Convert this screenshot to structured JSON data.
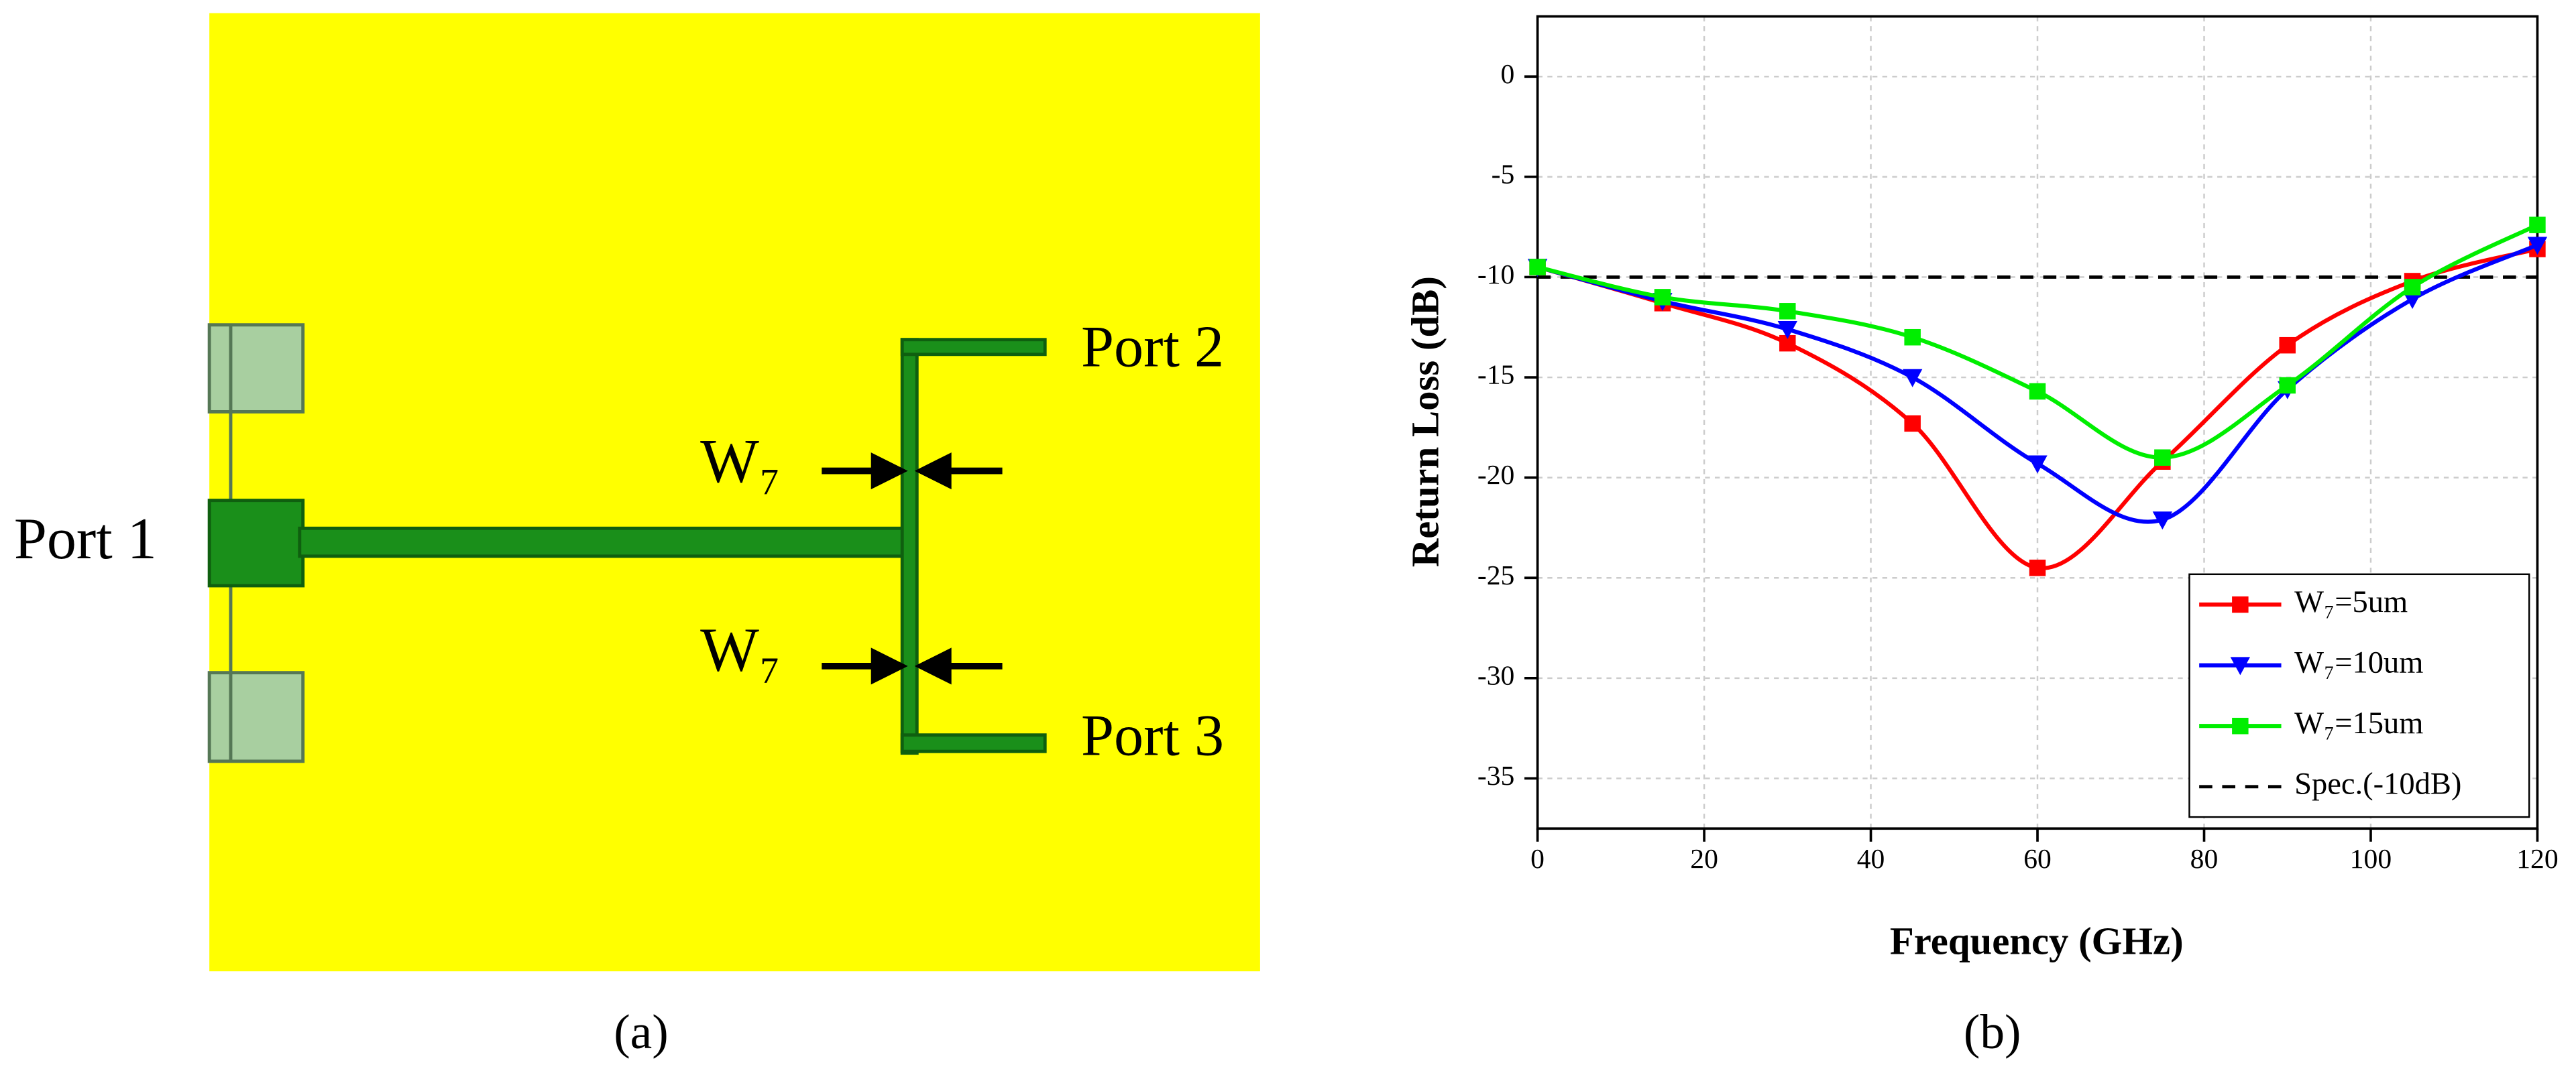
{
  "diagram": {
    "labels": {
      "port1": "Port 1",
      "port2": "Port 2",
      "port3": "Port 3",
      "w_top": "W₇",
      "w_bottom": "W₇"
    },
    "caption": "(a)"
  },
  "chart_data": {
    "type": "line",
    "caption": "(b)",
    "x_label": "Frequency (GHz)",
    "y_label": "Return Loss (dB)",
    "x": [
      0,
      15,
      30,
      45,
      60,
      75,
      90,
      105,
      120
    ],
    "series": [
      {
        "name": "W₇=5um",
        "color": "#ff0000",
        "marker": "square",
        "values": [
          -9.5,
          -11.3,
          -13.3,
          -17.3,
          -24.5,
          -19.2,
          -13.4,
          -10.2,
          -8.6
        ]
      },
      {
        "name": "W₇=10um",
        "color": "#0000ff",
        "marker": "triangle-down",
        "values": [
          -9.5,
          -11.2,
          -12.6,
          -15.0,
          -19.3,
          -22.1,
          -15.6,
          -11.1,
          -8.4
        ]
      },
      {
        "name": "W₇=15um",
        "color": "#00ee00",
        "marker": "square",
        "values": [
          -9.5,
          -11.0,
          -11.7,
          -13.0,
          -15.7,
          -19.0,
          -15.4,
          -10.5,
          -7.4
        ]
      }
    ],
    "reference_line": {
      "name": "Spec.(-10dB)",
      "value": -10,
      "color": "#000000"
    },
    "xlim": [
      0,
      120
    ],
    "xticks": [
      0,
      20,
      40,
      60,
      80,
      100,
      120
    ],
    "ylim": [
      -37.5,
      3
    ],
    "yticks": [
      -35,
      -30,
      -25,
      -20,
      -15,
      -10,
      -5,
      0
    ],
    "grid": true,
    "legend": "lower right"
  }
}
